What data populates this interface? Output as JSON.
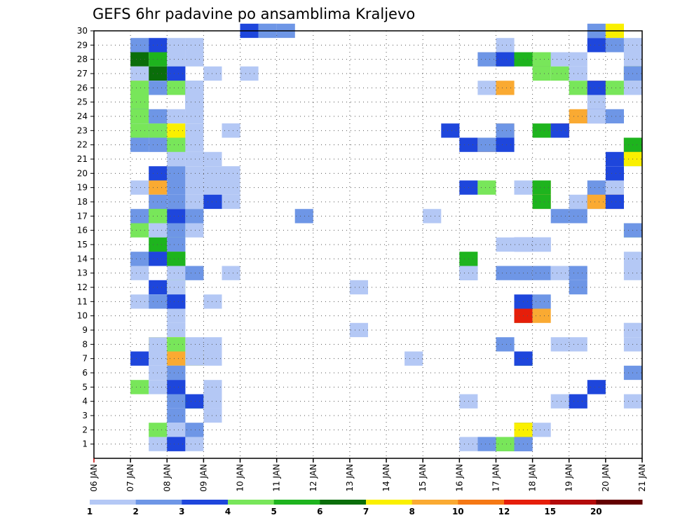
{
  "chart_data": {
    "type": "heatmap",
    "title": "GEFS 6hr padavine po ansamblima Kraljevo",
    "x_tick_labels": [
      "06 JAN",
      "07 JAN",
      "08 JAN",
      "09 JAN",
      "10 JAN",
      "11 JAN",
      "12 JAN",
      "13 JAN",
      "14 JAN",
      "15 JAN",
      "16 JAN",
      "17 JAN",
      "18 JAN",
      "19 JAN",
      "20 JAN",
      "21 JAN"
    ],
    "y_tick_labels": [
      "1",
      "2",
      "3",
      "4",
      "5",
      "6",
      "7",
      "8",
      "9",
      "10",
      "11",
      "12",
      "13",
      "14",
      "15",
      "16",
      "17",
      "18",
      "19",
      "20",
      "21",
      "22",
      "23",
      "24",
      "25",
      "26",
      "27",
      "28",
      "29",
      "30"
    ],
    "xlim": [
      0,
      60
    ],
    "ylim": [
      0,
      30
    ],
    "grid": true,
    "legend": {
      "placement": "bottom",
      "thresholds": [
        "1",
        "2",
        "3",
        "4",
        "5",
        "6",
        "7",
        "8",
        "10",
        "12",
        "15",
        "20"
      ],
      "colors": [
        "#b4c8f5",
        "#6e96e6",
        "#1e46dc",
        "#78e65a",
        "#1eb41e",
        "#0a6e0a",
        "#faf000",
        "#faaa32",
        "#f57814",
        "#e61e0a",
        "#b40a0a",
        "#640000"
      ]
    },
    "cells_note": "each cell: [x time-step (6h) from 06 JAN 00, y member row, color class index 0-11]",
    "cells": [
      [
        9,
        30,
        0
      ],
      [
        8,
        30,
        2
      ],
      [
        9,
        30,
        1
      ],
      [
        10,
        30,
        1
      ],
      [
        27,
        30,
        1
      ],
      [
        28,
        30,
        6
      ],
      [
        2,
        29,
        1
      ],
      [
        3,
        29,
        2
      ],
      [
        4,
        29,
        0
      ],
      [
        5,
        29,
        0
      ],
      [
        22,
        29,
        0
      ],
      [
        27,
        29,
        2
      ],
      [
        28,
        29,
        1
      ],
      [
        29,
        29,
        0
      ],
      [
        2,
        28,
        5
      ],
      [
        3,
        28,
        4
      ],
      [
        4,
        28,
        0
      ],
      [
        5,
        28,
        0
      ],
      [
        21,
        28,
        1
      ],
      [
        22,
        28,
        3
      ],
      [
        22,
        28,
        2
      ],
      [
        23,
        28,
        4
      ],
      [
        24,
        28,
        5
      ],
      [
        24,
        28,
        3
      ],
      [
        25,
        28,
        0
      ],
      [
        26,
        28,
        0
      ],
      [
        29,
        28,
        0
      ],
      [
        2,
        27,
        0
      ],
      [
        3,
        27,
        5
      ],
      [
        4,
        27,
        1
      ],
      [
        4,
        27,
        2
      ],
      [
        6,
        27,
        0
      ],
      [
        8,
        27,
        0
      ],
      [
        24,
        27,
        3
      ],
      [
        25,
        27,
        3
      ],
      [
        26,
        27,
        0
      ],
      [
        29,
        27,
        5
      ],
      [
        29,
        27,
        1
      ],
      [
        2,
        26,
        7
      ],
      [
        2,
        26,
        3
      ],
      [
        3,
        26,
        1
      ],
      [
        4,
        26,
        2
      ],
      [
        4,
        26,
        3
      ],
      [
        5,
        26,
        1
      ],
      [
        5,
        26,
        0
      ],
      [
        21,
        26,
        0
      ],
      [
        22,
        26,
        7
      ],
      [
        26,
        26,
        3
      ],
      [
        27,
        26,
        9
      ],
      [
        27,
        26,
        2
      ],
      [
        28,
        26,
        3
      ],
      [
        29,
        26,
        0
      ],
      [
        2,
        25,
        3
      ],
      [
        5,
        25,
        1
      ],
      [
        5,
        25,
        0
      ],
      [
        27,
        25,
        0
      ],
      [
        2,
        24,
        2
      ],
      [
        2,
        24,
        3
      ],
      [
        3,
        24,
        1
      ],
      [
        4,
        24,
        0
      ],
      [
        5,
        24,
        0
      ],
      [
        26,
        24,
        7
      ],
      [
        27,
        24,
        2
      ],
      [
        27,
        24,
        0
      ],
      [
        28,
        24,
        1
      ],
      [
        2,
        23,
        3
      ],
      [
        3,
        23,
        1
      ],
      [
        3,
        23,
        3
      ],
      [
        4,
        23,
        6
      ],
      [
        5,
        23,
        0
      ],
      [
        7,
        23,
        0
      ],
      [
        7,
        23,
        0
      ],
      [
        19,
        23,
        2
      ],
      [
        22,
        23,
        7
      ],
      [
        22,
        23,
        1
      ],
      [
        24,
        23,
        4
      ],
      [
        25,
        23,
        9
      ],
      [
        25,
        23,
        2
      ],
      [
        2,
        22,
        1
      ],
      [
        3,
        22,
        0
      ],
      [
        3,
        22,
        1
      ],
      [
        4,
        22,
        4
      ],
      [
        4,
        22,
        3
      ],
      [
        5,
        22,
        0
      ],
      [
        20,
        22,
        2
      ],
      [
        21,
        22,
        8
      ],
      [
        21,
        22,
        1
      ],
      [
        22,
        22,
        2
      ],
      [
        29,
        22,
        1
      ],
      [
        29,
        22,
        9
      ],
      [
        29,
        22,
        4
      ],
      [
        4,
        21,
        0
      ],
      [
        5,
        21,
        0
      ],
      [
        6,
        21,
        0
      ],
      [
        28,
        21,
        2
      ],
      [
        29,
        21,
        4
      ],
      [
        29,
        21,
        6
      ],
      [
        3,
        20,
        2
      ],
      [
        4,
        20,
        1
      ],
      [
        5,
        20,
        0
      ],
      [
        6,
        20,
        0
      ],
      [
        7,
        20,
        0
      ],
      [
        28,
        20,
        2
      ],
      [
        2,
        19,
        0
      ],
      [
        3,
        19,
        7
      ],
      [
        4,
        19,
        1
      ],
      [
        5,
        19,
        0
      ],
      [
        6,
        19,
        0
      ],
      [
        7,
        19,
        0
      ],
      [
        20,
        19,
        2
      ],
      [
        21,
        19,
        3
      ],
      [
        23,
        19,
        0
      ],
      [
        24,
        19,
        7
      ],
      [
        24,
        19,
        4
      ],
      [
        27,
        19,
        1
      ],
      [
        28,
        19,
        0
      ],
      [
        3,
        18,
        1
      ],
      [
        4,
        18,
        1
      ],
      [
        5,
        18,
        0
      ],
      [
        6,
        18,
        2
      ],
      [
        7,
        18,
        0
      ],
      [
        24,
        18,
        7
      ],
      [
        24,
        18,
        4
      ],
      [
        26,
        18,
        0
      ],
      [
        27,
        18,
        2
      ],
      [
        27,
        18,
        7
      ],
      [
        28,
        18,
        8
      ],
      [
        28,
        18,
        2
      ],
      [
        2,
        17,
        1
      ],
      [
        3,
        17,
        4
      ],
      [
        3,
        17,
        3
      ],
      [
        4,
        17,
        2
      ],
      [
        5,
        17,
        1
      ],
      [
        11,
        17,
        1
      ],
      [
        18,
        17,
        0
      ],
      [
        25,
        17,
        1
      ],
      [
        26,
        17,
        1
      ],
      [
        2,
        16,
        3
      ],
      [
        3,
        16,
        0
      ],
      [
        4,
        16,
        3
      ],
      [
        4,
        16,
        1
      ],
      [
        5,
        16,
        0
      ],
      [
        29,
        16,
        3
      ],
      [
        29,
        16,
        1
      ],
      [
        3,
        15,
        4
      ],
      [
        4,
        15,
        1
      ],
      [
        22,
        15,
        0
      ],
      [
        23,
        15,
        2
      ],
      [
        23,
        15,
        0
      ],
      [
        24,
        15,
        1
      ],
      [
        24,
        15,
        0
      ],
      [
        2,
        14,
        1
      ],
      [
        3,
        14,
        5
      ],
      [
        3,
        14,
        2
      ],
      [
        4,
        14,
        4
      ],
      [
        4,
        14,
        4
      ],
      [
        20,
        14,
        4
      ],
      [
        29,
        14,
        0
      ],
      [
        2,
        13,
        0
      ],
      [
        4,
        13,
        0
      ],
      [
        5,
        13,
        0
      ],
      [
        5,
        13,
        1
      ],
      [
        7,
        13,
        0
      ],
      [
        20,
        13,
        1
      ],
      [
        20,
        13,
        0
      ],
      [
        22,
        13,
        1
      ],
      [
        23,
        13,
        0
      ],
      [
        23,
        13,
        1
      ],
      [
        24,
        13,
        1
      ],
      [
        25,
        13,
        0
      ],
      [
        26,
        13,
        1
      ],
      [
        29,
        13,
        0
      ],
      [
        3,
        12,
        2
      ],
      [
        4,
        12,
        3
      ],
      [
        4,
        12,
        0
      ],
      [
        14,
        12,
        0
      ],
      [
        26,
        12,
        1
      ],
      [
        2,
        11,
        0
      ],
      [
        3,
        11,
        1
      ],
      [
        4,
        11,
        1
      ],
      [
        4,
        11,
        2
      ],
      [
        6,
        11,
        0
      ],
      [
        23,
        11,
        2
      ],
      [
        24,
        11,
        1
      ],
      [
        4,
        10,
        0
      ],
      [
        23,
        10,
        3
      ],
      [
        23,
        10,
        9
      ],
      [
        24,
        10,
        7
      ],
      [
        4,
        9,
        0
      ],
      [
        14,
        9,
        0
      ],
      [
        29,
        9,
        0
      ],
      [
        29,
        9,
        0
      ],
      [
        3,
        8,
        6
      ],
      [
        3,
        8,
        0
      ],
      [
        4,
        8,
        6
      ],
      [
        4,
        8,
        3
      ],
      [
        5,
        8,
        0
      ],
      [
        6,
        8,
        0
      ],
      [
        22,
        8,
        1
      ],
      [
        25,
        8,
        0
      ],
      [
        26,
        8,
        0
      ],
      [
        29,
        8,
        0
      ],
      [
        2,
        7,
        2
      ],
      [
        3,
        7,
        0
      ],
      [
        4,
        7,
        3
      ],
      [
        4,
        7,
        7
      ],
      [
        5,
        7,
        6
      ],
      [
        5,
        7,
        0
      ],
      [
        6,
        7,
        0
      ],
      [
        17,
        7,
        0
      ],
      [
        23,
        7,
        4
      ],
      [
        23,
        7,
        2
      ],
      [
        3,
        6,
        0
      ],
      [
        4,
        6,
        0
      ],
      [
        4,
        6,
        1
      ],
      [
        29,
        6,
        1
      ],
      [
        2,
        5,
        3
      ],
      [
        3,
        5,
        0
      ],
      [
        4,
        5,
        1
      ],
      [
        4,
        5,
        2
      ],
      [
        6,
        5,
        0
      ],
      [
        27,
        5,
        2
      ],
      [
        4,
        4,
        0
      ],
      [
        4,
        4,
        1
      ],
      [
        5,
        4,
        4
      ],
      [
        5,
        4,
        2
      ],
      [
        6,
        4,
        0
      ],
      [
        6,
        4,
        0
      ],
      [
        20,
        4,
        0
      ],
      [
        25,
        4,
        0
      ],
      [
        26,
        4,
        0
      ],
      [
        26,
        4,
        2
      ],
      [
        29,
        4,
        0
      ],
      [
        4,
        3,
        0
      ],
      [
        4,
        3,
        1
      ],
      [
        6,
        3,
        0
      ],
      [
        3,
        2,
        3
      ],
      [
        4,
        2,
        0
      ],
      [
        4,
        2,
        0
      ],
      [
        5,
        2,
        1
      ],
      [
        23,
        2,
        2
      ],
      [
        23,
        2,
        6
      ],
      [
        24,
        2,
        0
      ],
      [
        3,
        1,
        0
      ],
      [
        4,
        1,
        2
      ],
      [
        4,
        1,
        2
      ],
      [
        5,
        1,
        0
      ],
      [
        20,
        1,
        0
      ],
      [
        21,
        1,
        1
      ],
      [
        22,
        1,
        4
      ],
      [
        22,
        1,
        3
      ],
      [
        23,
        1,
        2
      ],
      [
        23,
        1,
        1
      ]
    ]
  }
}
